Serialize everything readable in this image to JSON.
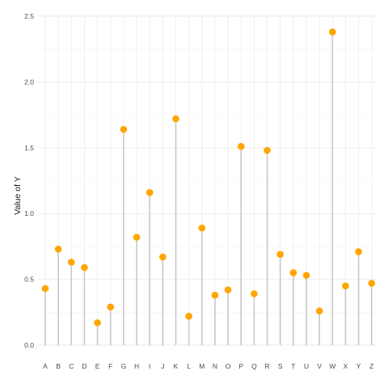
{
  "chart_data": {
    "type": "lollipop",
    "title": "",
    "xlabel": "",
    "ylabel": "Value of Y",
    "categories": [
      "A",
      "B",
      "C",
      "D",
      "E",
      "F",
      "G",
      "H",
      "I",
      "J",
      "K",
      "L",
      "M",
      "N",
      "O",
      "P",
      "Q",
      "R",
      "S",
      "T",
      "U",
      "V",
      "W",
      "X",
      "Y",
      "Z"
    ],
    "values": [
      0.43,
      0.73,
      0.63,
      0.59,
      0.17,
      0.29,
      1.64,
      0.82,
      1.16,
      0.67,
      1.72,
      0.22,
      0.89,
      0.38,
      0.42,
      1.51,
      0.39,
      1.48,
      0.69,
      0.55,
      0.53,
      0.26,
      2.38,
      0.45,
      0.71,
      0.47
    ],
    "ylim": [
      0,
      2.5
    ],
    "y_ticks": [
      0.0,
      0.5,
      1.0,
      1.5,
      2.0,
      2.5
    ],
    "y_tick_labels": [
      "0.0",
      "0.5",
      "1.0",
      "1.5",
      "2.0",
      "2.5"
    ],
    "grid": true,
    "legend": "none",
    "colors": {
      "point": "#FFA500",
      "stem": "#c8c8c8",
      "grid_major": "#ebebeb",
      "grid_minor": "#f4f4f4",
      "text": "#4d4d4d"
    }
  }
}
